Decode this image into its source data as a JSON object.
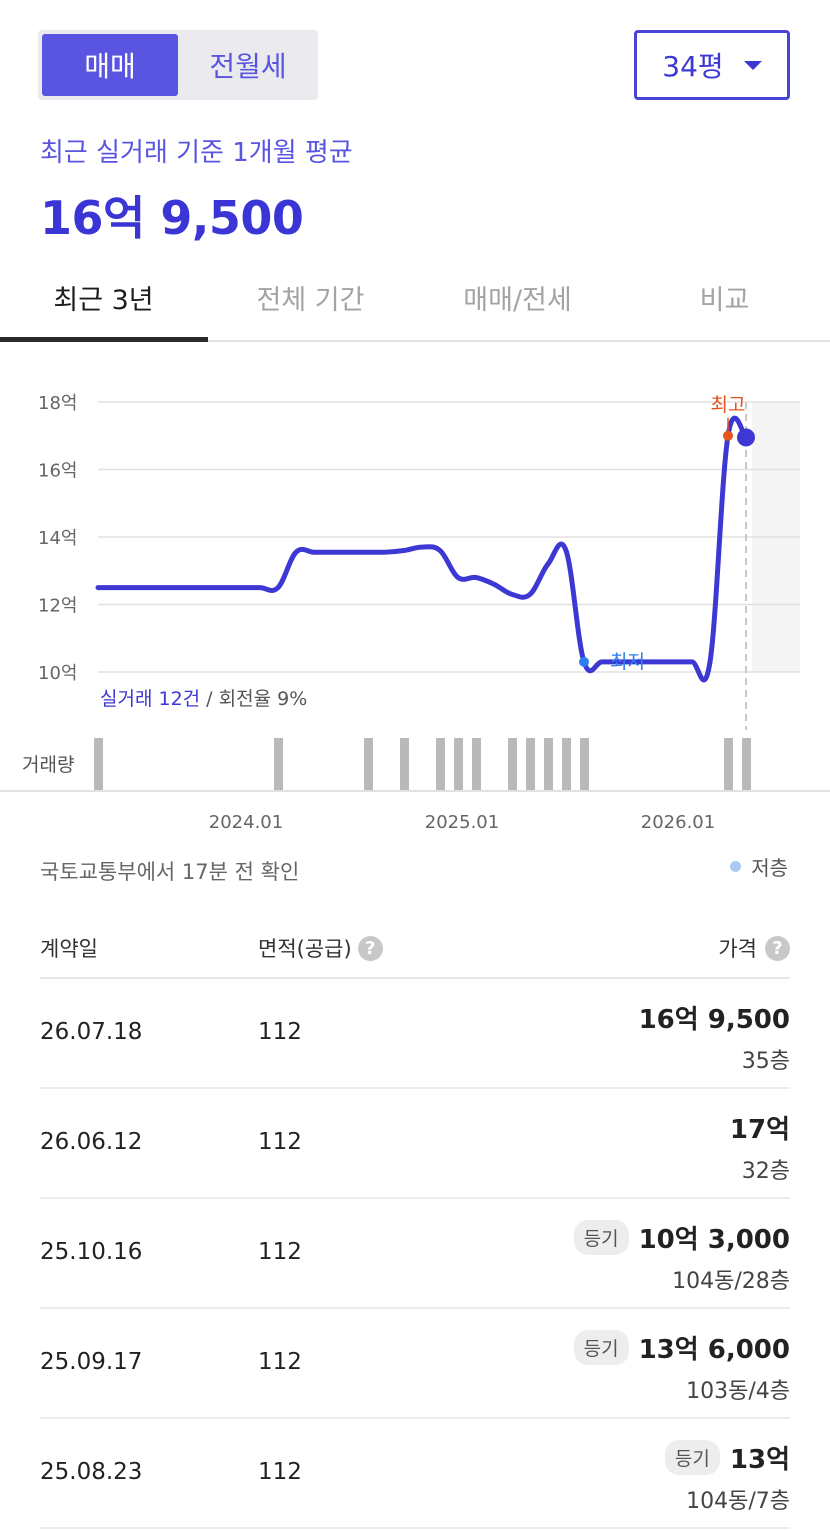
{
  "deal_toggle": {
    "active": "매매",
    "inactive": "전월세"
  },
  "size_select": {
    "value": "34평"
  },
  "average": {
    "label": "최근 실거래 기준 1개월 평균",
    "value": "16억 9,500"
  },
  "tabs": [
    {
      "label": "최근 3년"
    },
    {
      "label": "전체 기간"
    },
    {
      "label": "매매/전세"
    },
    {
      "label": "비교"
    }
  ],
  "chart_data": {
    "type": "line",
    "y_ticks": [
      "18억",
      "16억",
      "14억",
      "12억",
      "10억"
    ],
    "y_values": [
      18,
      16,
      14,
      12,
      10
    ],
    "ylim": [
      10,
      18
    ],
    "x_ticks": [
      "2024.01",
      "2025.01",
      "2026.01"
    ],
    "x_tick_dates": [
      "2024-01",
      "2025-01",
      "2026-01"
    ],
    "series": [
      {
        "color": "#3d38d4",
        "x": [
          "2023-07",
          "2023-08",
          "2023-09",
          "2023-10",
          "2023-11",
          "2023-12",
          "2024-01",
          "2024-02",
          "2024-03",
          "2024-04",
          "2024-05",
          "2024-06",
          "2024-07",
          "2024-08",
          "2024-09",
          "2024-10",
          "2024-11",
          "2024-12",
          "2025-01",
          "2025-02",
          "2025-03",
          "2025-04",
          "2025-05",
          "2025-06",
          "2025-07",
          "2025-08",
          "2025-09",
          "2025-10",
          "2025-11",
          "2025-12",
          "2026-01",
          "2026-02",
          "2026-03",
          "2026-04",
          "2026-05",
          "2026-06",
          "2026-07"
        ],
        "y": [
          12.5,
          12.5,
          12.5,
          12.5,
          12.5,
          12.5,
          12.5,
          12.5,
          12.5,
          12.5,
          12.5,
          13.55,
          13.55,
          13.55,
          13.55,
          13.55,
          13.55,
          13.6,
          13.7,
          13.6,
          12.8,
          12.8,
          12.6,
          12.3,
          12.3,
          13.2,
          13.6,
          10.3,
          10.3,
          10.3,
          10.3,
          10.3,
          10.3,
          10.3,
          10.3,
          17.0,
          16.95
        ]
      }
    ],
    "annotations": [
      {
        "label": "최고",
        "date": "2026-06",
        "value": 17.0,
        "color": "#e8521c"
      },
      {
        "label": "최저",
        "date": "2025-10",
        "value": 10.3,
        "color": "#2f7ef0"
      }
    ],
    "current": {
      "date": "2026-07",
      "value": 16.95
    },
    "future_shaded_from": "2026-08",
    "summary": {
      "count_label": "실거래 12건",
      "separator": " / ",
      "turnover_label": "회전율 9%"
    },
    "volume": {
      "label": "거래량",
      "bars": [
        "2023-07",
        "2024-05",
        "2024-10",
        "2024-12",
        "2025-02",
        "2025-03",
        "2025-04",
        "2025-06",
        "2025-07",
        "2025-08",
        "2025-09",
        "2025-10",
        "2026-06",
        "2026-07"
      ]
    }
  },
  "source": {
    "text": "국토교통부에서 17분 전 확인"
  },
  "legend": {
    "label": "저층",
    "color": "#a9c9ef"
  },
  "table": {
    "headers": {
      "date": "계약일",
      "area": "면적(공급)",
      "price": "가격"
    },
    "rows": [
      {
        "date": "26.07.18",
        "area": "112",
        "badge": "",
        "price": "16억 9,500",
        "floor": "35층"
      },
      {
        "date": "26.06.12",
        "area": "112",
        "badge": "",
        "price": "17억",
        "floor": "32층"
      },
      {
        "date": "25.10.16",
        "area": "112",
        "badge": "등기",
        "price": "10억 3,000",
        "floor": "104동/28층"
      },
      {
        "date": "25.09.17",
        "area": "112",
        "badge": "등기",
        "price": "13억 6,000",
        "floor": "103동/4층"
      },
      {
        "date": "25.08.23",
        "area": "112",
        "badge": "등기",
        "price": "13억",
        "floor": "104동/7층"
      }
    ]
  }
}
